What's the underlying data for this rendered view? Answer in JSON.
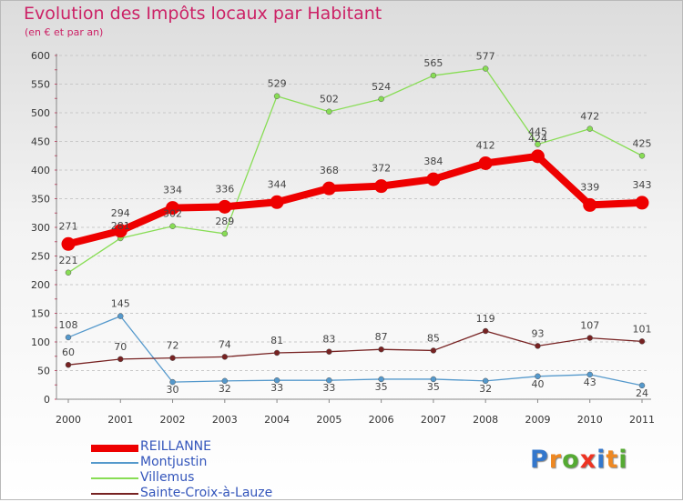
{
  "title": "Evolution des Impôts locaux par Habitant",
  "subtitle": "(en € et par an)",
  "logo": {
    "text": "Proxiti",
    "letters": [
      {
        "ch": "P",
        "color": "#3377cc"
      },
      {
        "ch": "r",
        "color": "#ee8822"
      },
      {
        "ch": "o",
        "color": "#55aa33"
      },
      {
        "ch": "x",
        "color": "#ee3322"
      },
      {
        "ch": "i",
        "color": "#3377cc"
      },
      {
        "ch": "t",
        "color": "#ee8822"
      },
      {
        "ch": "i",
        "color": "#55aa33"
      }
    ]
  },
  "chart_data": {
    "type": "line",
    "title": "Evolution des Impôts locaux par Habitant",
    "subtitle": "(en € et par an)",
    "xlabel": "",
    "ylabel": "",
    "categories": [
      "2000",
      "2001",
      "2002",
      "2003",
      "2004",
      "2005",
      "2006",
      "2007",
      "2008",
      "2009",
      "2010",
      "2011"
    ],
    "ylim": [
      0,
      600
    ],
    "yticks": [
      0,
      50,
      100,
      150,
      200,
      250,
      300,
      350,
      400,
      450,
      500,
      550,
      600
    ],
    "grid": "horizontal dashed",
    "legend_position": "bottom-left",
    "series": [
      {
        "name": "REILLANNE",
        "color": "#ee0000",
        "emphasis": true,
        "values": [
          271,
          294,
          334,
          336,
          344,
          368,
          372,
          384,
          412,
          424,
          339,
          343
        ],
        "labels": [
          "271",
          "294",
          "334",
          "336",
          "344",
          "368",
          "372",
          "384",
          "412",
          "424",
          "339",
          "343"
        ]
      },
      {
        "name": "Montjustin",
        "color": "#5599cc",
        "emphasis": false,
        "values": [
          108,
          145,
          30,
          32,
          33,
          33,
          35,
          35,
          32,
          40,
          43,
          24
        ],
        "labels": [
          "108",
          "145",
          "30",
          "32",
          "33",
          "33",
          "35",
          "35",
          "32",
          "40",
          "43",
          "24"
        ]
      },
      {
        "name": "Villemus",
        "color": "#88dd55",
        "emphasis": false,
        "values": [
          221,
          281,
          302,
          289,
          529,
          502,
          524,
          565,
          577,
          445,
          472,
          425
        ],
        "labels": [
          "221",
          "281",
          "302",
          "289",
          "529",
          "502",
          "524",
          "565",
          "577",
          "445",
          "472",
          "425"
        ]
      },
      {
        "name": "Sainte-Croix-à-Lauze",
        "color": "#772222",
        "emphasis": false,
        "values": [
          60,
          70,
          72,
          74,
          81,
          83,
          87,
          85,
          119,
          93,
          107,
          101
        ],
        "labels": [
          "60",
          "70",
          "72",
          "74",
          "81",
          "83",
          "87",
          "85",
          "119",
          "93",
          "107",
          "101"
        ]
      }
    ]
  }
}
